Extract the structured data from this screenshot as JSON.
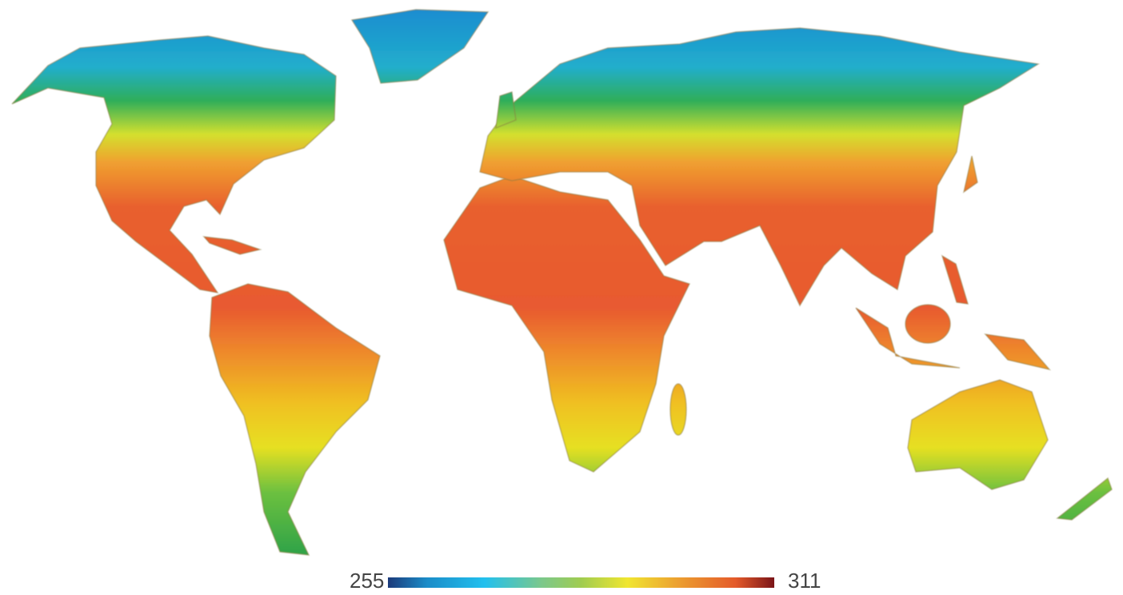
{
  "map": {
    "type": "choropleth-world",
    "colorbar": {
      "min_label": "255",
      "max_label": "311",
      "colors": [
        "#1c3a7a",
        "#1b8cc8",
        "#22c0ee",
        "#7cc88a",
        "#94c858",
        "#f0e630",
        "#eca030",
        "#e45a2a",
        "#7a1418"
      ]
    }
  }
}
